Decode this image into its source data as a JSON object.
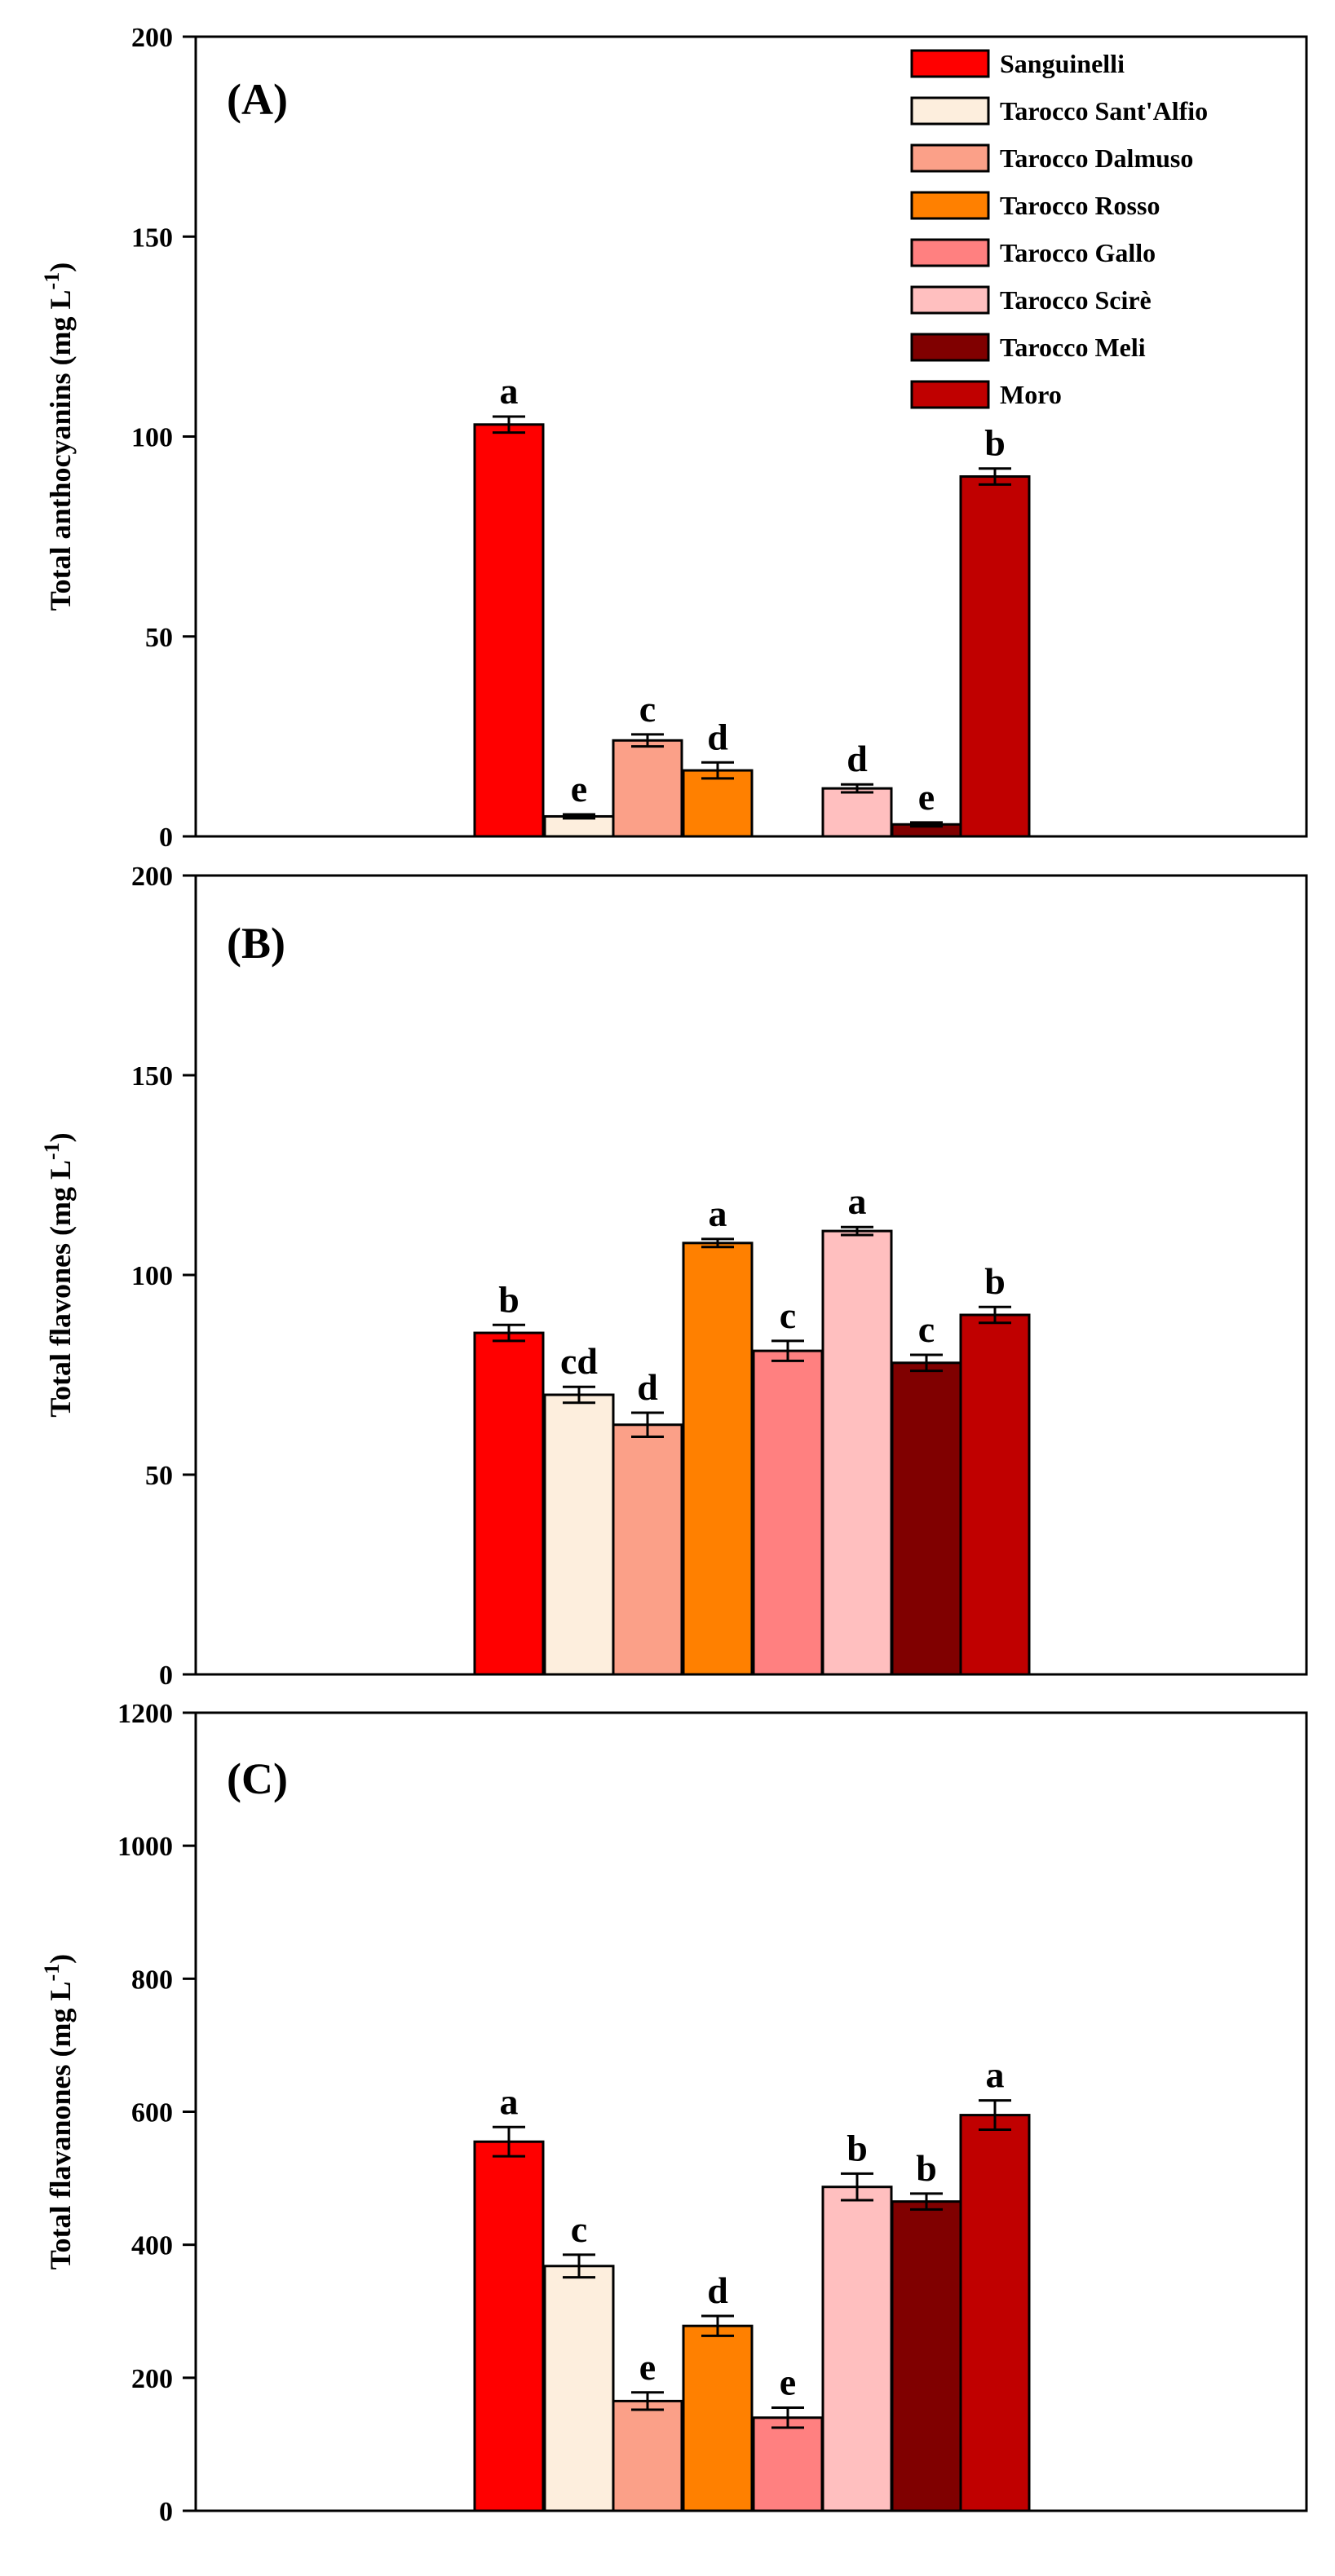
{
  "colors": {
    "Sanguinelli": "#ff0000",
    "Tarocco Sant'Alfio": "#fdeedd",
    "Tarocco Dalmuso": "#fba088",
    "Tarocco Rosso": "#ff8000",
    "Tarocco Gallo": "#ff8080",
    "Tarocco Scirè": "#ffbfbf",
    "Tarocco Meli": "#800000",
    "Moro": "#c00000"
  },
  "legend": {
    "entries": [
      "Sanguinelli",
      "Tarocco Sant'Alfio",
      "Tarocco Dalmuso",
      "Tarocco Rosso",
      "Tarocco Gallo",
      "Tarocco Scirè",
      "Tarocco Meli",
      "Moro"
    ],
    "placement": "top-right of panel A"
  },
  "chart_data": [
    {
      "type": "bar",
      "panel": "(A)",
      "ylabel": "Total anthocyanins (mg L",
      "ylabel_sup": "-1",
      "ylabel_close": ")",
      "ylim": [
        0,
        200
      ],
      "yticks": [
        0,
        50,
        100,
        150,
        200
      ],
      "categories": [
        "Sanguinelli",
        "Tarocco Sant'Alfio",
        "Tarocco Dalmuso",
        "Tarocco Rosso",
        "Tarocco Gallo",
        "Tarocco Scirè",
        "Tarocco Meli",
        "Moro"
      ],
      "values": [
        103,
        5,
        24,
        16.5,
        0,
        12,
        3,
        90
      ],
      "errors": [
        2,
        0.5,
        1.5,
        2,
        0,
        1,
        0.5,
        2
      ],
      "letters": [
        "a",
        "e",
        "c",
        "d",
        "",
        "d",
        "e",
        "b"
      ]
    },
    {
      "type": "bar",
      "panel": "(B)",
      "ylabel": "Total flavones (mg L",
      "ylabel_sup": "-1",
      "ylabel_close": ")",
      "ylim": [
        0,
        200
      ],
      "yticks": [
        0,
        50,
        100,
        150,
        200
      ],
      "categories": [
        "Sanguinelli",
        "Tarocco Sant'Alfio",
        "Tarocco Dalmuso",
        "Tarocco Rosso",
        "Tarocco Gallo",
        "Tarocco Scirè",
        "Tarocco Meli",
        "Moro"
      ],
      "values": [
        85.5,
        70,
        62.5,
        108,
        81,
        111,
        78,
        90
      ],
      "errors": [
        2,
        2,
        3,
        1,
        2.5,
        1,
        2,
        2
      ],
      "letters": [
        "b",
        "cd",
        "d",
        "a",
        "c",
        "a",
        "c",
        "b"
      ]
    },
    {
      "type": "bar",
      "panel": "(C)",
      "ylabel": "Total flavanones (mg L",
      "ylabel_sup": "-1",
      "ylabel_close": ")",
      "ylim": [
        0,
        1200
      ],
      "yticks": [
        0,
        200,
        400,
        600,
        800,
        1000,
        1200
      ],
      "categories": [
        "Sanguinelli",
        "Tarocco Sant'Alfio",
        "Tarocco Dalmuso",
        "Tarocco Rosso",
        "Tarocco Gallo",
        "Tarocco Scirè",
        "Tarocco Meli",
        "Moro"
      ],
      "values": [
        555,
        368,
        165,
        278,
        140,
        487,
        465,
        595
      ],
      "errors": [
        22,
        17,
        13,
        15,
        15,
        20,
        12,
        22
      ],
      "letters": [
        "a",
        "c",
        "e",
        "d",
        "e",
        "b",
        "b",
        "a"
      ]
    }
  ]
}
